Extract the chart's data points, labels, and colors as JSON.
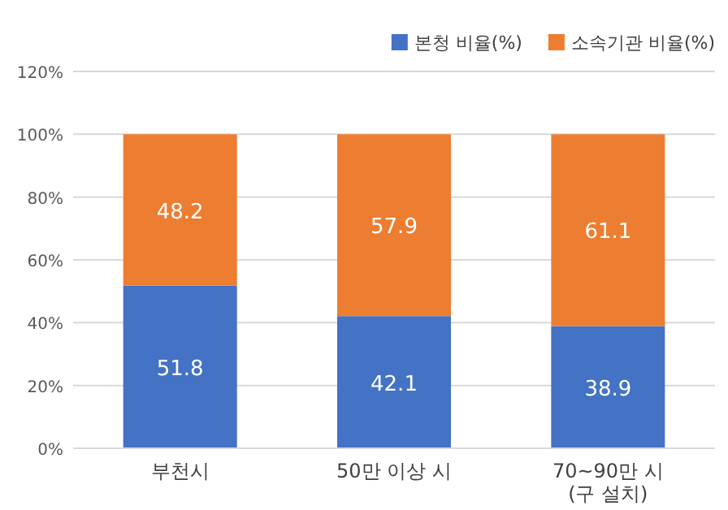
{
  "chart_data": {
    "type": "bar",
    "stacked": true,
    "categories": [
      "부천시",
      "50만 이상 시",
      "70~90만 시\n(구 설치)"
    ],
    "series": [
      {
        "name": "본청 비율(%)",
        "color": "#4472c4",
        "values": [
          51.8,
          42.1,
          38.9
        ]
      },
      {
        "name": "소속기관 비율(%)",
        "color": "#ed7d31",
        "values": [
          48.2,
          57.9,
          61.1
        ]
      }
    ],
    "ylim": [
      0,
      120
    ],
    "yticks": [
      {
        "value": 0,
        "label": "0%"
      },
      {
        "value": 20,
        "label": "20%"
      },
      {
        "value": 40,
        "label": "40%"
      },
      {
        "value": 60,
        "label": "60%"
      },
      {
        "value": 80,
        "label": "80%"
      },
      {
        "value": 100,
        "label": "100%"
      },
      {
        "value": 120,
        "label": "120%"
      }
    ],
    "grid": "y",
    "legend": "top right",
    "data_labels": true
  }
}
